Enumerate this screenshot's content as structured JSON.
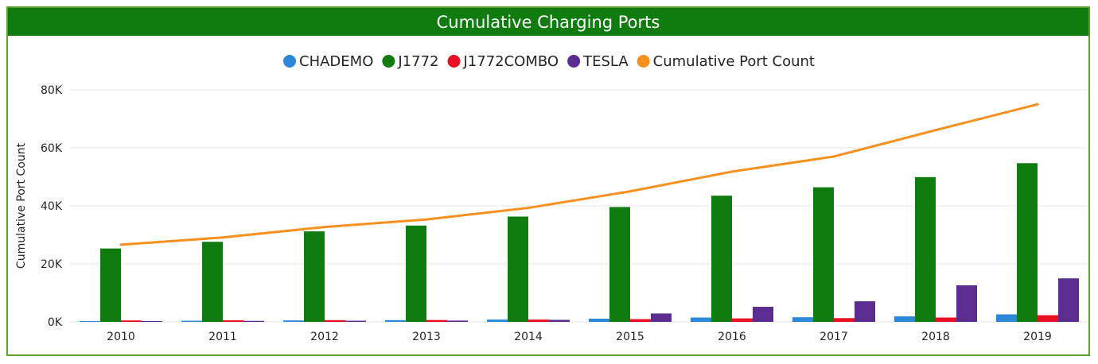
{
  "title": "Cumulative Charging Ports",
  "colors": {
    "title_bar": "#107c10",
    "frame_border": "#5aa02c",
    "gridline": "#e6e6e6",
    "text": "#252423"
  },
  "chart_data": {
    "type": "bar",
    "title": "Cumulative Charging Ports",
    "xlabel": "",
    "ylabel": "Cumulative Port Count",
    "categories": [
      "2010",
      "2011",
      "2012",
      "2013",
      "2014",
      "2015",
      "2016",
      "2017",
      "2018",
      "2019"
    ],
    "ylim": [
      0,
      80000
    ],
    "yticks": [
      0,
      20000,
      40000,
      60000,
      80000
    ],
    "ytick_labels": [
      "0K",
      "20K",
      "40K",
      "60K",
      "80K"
    ],
    "grid": true,
    "legend_position": "top-center",
    "series": [
      {
        "name": "CHADEMO",
        "kind": "bar",
        "color": "#2b88d8",
        "values": [
          300,
          400,
          500,
          600,
          800,
          1100,
          1500,
          1600,
          1900,
          2600
        ]
      },
      {
        "name": "J1772",
        "kind": "bar",
        "color": "#107c10",
        "values": [
          25300,
          27600,
          31200,
          33200,
          36300,
          39600,
          43500,
          46400,
          49900,
          54700
        ]
      },
      {
        "name": "J1772COMBO",
        "kind": "bar",
        "color": "#e81123",
        "values": [
          500,
          550,
          600,
          650,
          800,
          950,
          1200,
          1300,
          1500,
          2300
        ]
      },
      {
        "name": "TESLA",
        "kind": "bar",
        "color": "#5c2d91",
        "values": [
          300,
          350,
          400,
          450,
          700,
          2900,
          5200,
          7100,
          12600,
          15000
        ]
      },
      {
        "name": "Cumulative Port Count",
        "kind": "line",
        "color": "#f7901e",
        "values": [
          26600,
          29100,
          32700,
          35300,
          39300,
          45000,
          51800,
          57000,
          66100,
          75000
        ]
      }
    ]
  }
}
